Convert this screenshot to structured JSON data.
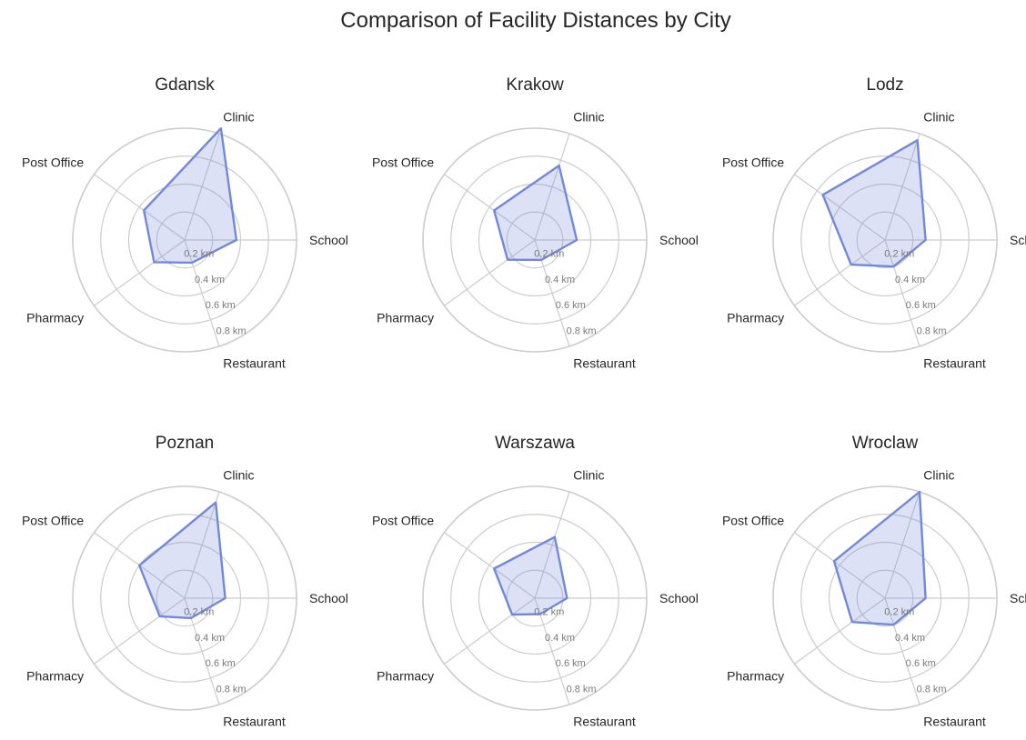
{
  "figure": {
    "title": "Comparison of Facility Distances by City"
  },
  "chart_data": [
    {
      "type": "radar",
      "title": "Gdansk",
      "categories": [
        "School",
        "Clinic",
        "Post Office",
        "Pharmacy",
        "Restaurant"
      ],
      "values": [
        0.37,
        0.84,
        0.36,
        0.27,
        0.17
      ],
      "rlim": [
        0,
        0.8
      ],
      "r_ticks": [
        "0.2 km",
        "0.4 km",
        "0.6 km",
        "0.8 km"
      ],
      "grid": true,
      "color": "#7289da"
    },
    {
      "type": "radar",
      "title": "Krakow",
      "categories": [
        "School",
        "Clinic",
        "Post Office",
        "Pharmacy",
        "Restaurant"
      ],
      "values": [
        0.3,
        0.56,
        0.36,
        0.24,
        0.15
      ],
      "rlim": [
        0,
        0.8
      ],
      "r_ticks": [
        "0.2 km",
        "0.4 km",
        "0.6 km",
        "0.8 km"
      ],
      "grid": true,
      "color": "#7289da"
    },
    {
      "type": "radar",
      "title": "Lodz",
      "categories": [
        "School",
        "Clinic",
        "Post Office",
        "Pharmacy",
        "Restaurant"
      ],
      "values": [
        0.29,
        0.75,
        0.55,
        0.3,
        0.2
      ],
      "rlim": [
        0,
        0.8
      ],
      "r_ticks": [
        "0.2 km",
        "0.4 km",
        "0.6 km",
        "0.8 km"
      ],
      "grid": true,
      "color": "#7289da"
    },
    {
      "type": "radar",
      "title": "Poznan",
      "categories": [
        "School",
        "Clinic",
        "Post Office",
        "Pharmacy",
        "Restaurant"
      ],
      "values": [
        0.29,
        0.72,
        0.4,
        0.22,
        0.15
      ],
      "rlim": [
        0,
        0.8
      ],
      "r_ticks": [
        "0.2 km",
        "0.4 km",
        "0.6 km",
        "0.8 km"
      ],
      "grid": true,
      "color": "#7289da"
    },
    {
      "type": "radar",
      "title": "Warszawa",
      "categories": [
        "School",
        "Clinic",
        "Post Office",
        "Pharmacy",
        "Restaurant"
      ],
      "values": [
        0.23,
        0.46,
        0.36,
        0.2,
        0.12
      ],
      "rlim": [
        0,
        0.8
      ],
      "r_ticks": [
        "0.2 km",
        "0.4 km",
        "0.6 km",
        "0.8 km"
      ],
      "grid": true,
      "color": "#7289da"
    },
    {
      "type": "radar",
      "title": "Wroclaw",
      "categories": [
        "School",
        "Clinic",
        "Post Office",
        "Pharmacy",
        "Restaurant"
      ],
      "values": [
        0.29,
        0.8,
        0.45,
        0.29,
        0.2
      ],
      "rlim": [
        0,
        0.8
      ],
      "r_ticks": [
        "0.2 km",
        "0.4 km",
        "0.6 km",
        "0.8 km"
      ],
      "grid": true,
      "color": "#7289da"
    }
  ]
}
